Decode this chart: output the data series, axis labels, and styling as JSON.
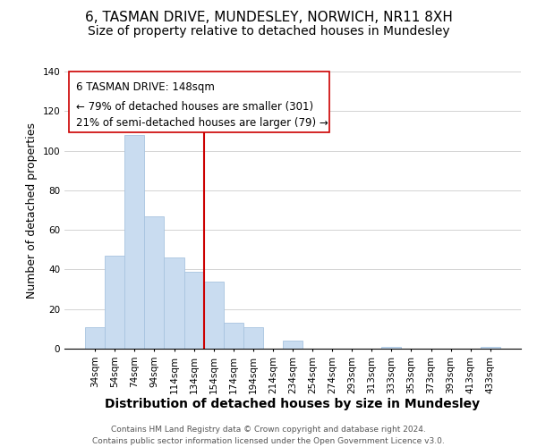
{
  "title": "6, TASMAN DRIVE, MUNDESLEY, NORWICH, NR11 8XH",
  "subtitle": "Size of property relative to detached houses in Mundesley",
  "xlabel": "Distribution of detached houses by size in Mundesley",
  "ylabel": "Number of detached properties",
  "bar_labels": [
    "34sqm",
    "54sqm",
    "74sqm",
    "94sqm",
    "114sqm",
    "134sqm",
    "154sqm",
    "174sqm",
    "194sqm",
    "214sqm",
    "234sqm",
    "254sqm",
    "274sqm",
    "293sqm",
    "313sqm",
    "333sqm",
    "353sqm",
    "373sqm",
    "393sqm",
    "413sqm",
    "433sqm"
  ],
  "bar_values": [
    11,
    47,
    108,
    67,
    46,
    39,
    34,
    13,
    11,
    0,
    4,
    0,
    0,
    0,
    0,
    1,
    0,
    0,
    0,
    0,
    1
  ],
  "bar_color": "#c9dcf0",
  "bar_edge_color": "#a8c4e0",
  "vline_color": "#cc0000",
  "vline_x": 5.5,
  "ylim": [
    0,
    140
  ],
  "annotation_line1": "6 TASMAN DRIVE: 148sqm",
  "annotation_line2": "← 79% of detached houses are smaller (301)",
  "annotation_line3": "21% of semi-detached houses are larger (79) →",
  "footer_line1": "Contains HM Land Registry data © Crown copyright and database right 2024.",
  "footer_line2": "Contains public sector information licensed under the Open Government Licence v3.0.",
  "title_fontsize": 11,
  "subtitle_fontsize": 10,
  "xlabel_fontsize": 10,
  "ylabel_fontsize": 9,
  "tick_fontsize": 7.5,
  "annotation_fontsize": 8.5,
  "footer_fontsize": 6.5
}
